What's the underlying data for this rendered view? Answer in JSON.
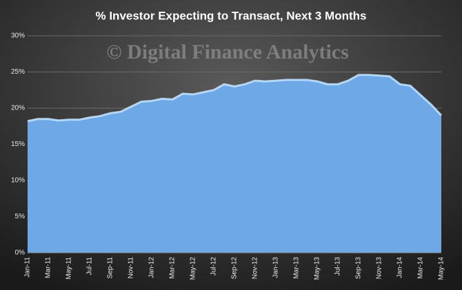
{
  "chart_data": {
    "type": "area",
    "title": "% Investor Expecting to Transact, Next 3 Months",
    "annotation": "© Digital Finance Analytics",
    "categories": [
      "Jan-11",
      null,
      "Mar-11",
      null,
      "May-11",
      null,
      "Jul-11",
      null,
      "Sep-11",
      null,
      "Nov-11",
      null,
      "Jan-12",
      null,
      "Mar-12",
      null,
      "May-12",
      null,
      "Jul-12",
      null,
      "Sep-12",
      null,
      "Nov-12",
      null,
      "Jan-13",
      null,
      "Mar-13",
      null,
      "May-13",
      null,
      "Jul-13",
      null,
      "Sep-13",
      null,
      "Nov-13",
      null,
      "Jan-14",
      null,
      "Mar-14",
      null,
      "May-14"
    ],
    "values": [
      18.2,
      18.5,
      18.5,
      18.3,
      18.4,
      18.4,
      18.7,
      18.9,
      19.3,
      19.5,
      20.2,
      20.9,
      21.0,
      21.3,
      21.2,
      22.0,
      21.9,
      22.2,
      22.5,
      23.3,
      23.0,
      23.3,
      23.8,
      23.7,
      23.8,
      23.9,
      23.9,
      23.9,
      23.7,
      23.3,
      23.3,
      23.8,
      24.6,
      24.6,
      24.5,
      24.4,
      23.3,
      23.1,
      21.8,
      20.5,
      19.0
    ],
    "color": "#6fa8e6",
    "ylim": [
      0,
      30
    ],
    "yticks": [
      {
        "value": 0,
        "label": "0%"
      },
      {
        "value": 5,
        "label": "5%"
      },
      {
        "value": 10,
        "label": "10%"
      },
      {
        "value": 15,
        "label": "15%"
      },
      {
        "value": 20,
        "label": "20%"
      },
      {
        "value": 25,
        "label": "25%"
      },
      {
        "value": 30,
        "label": "30%"
      }
    ],
    "grid": true
  }
}
